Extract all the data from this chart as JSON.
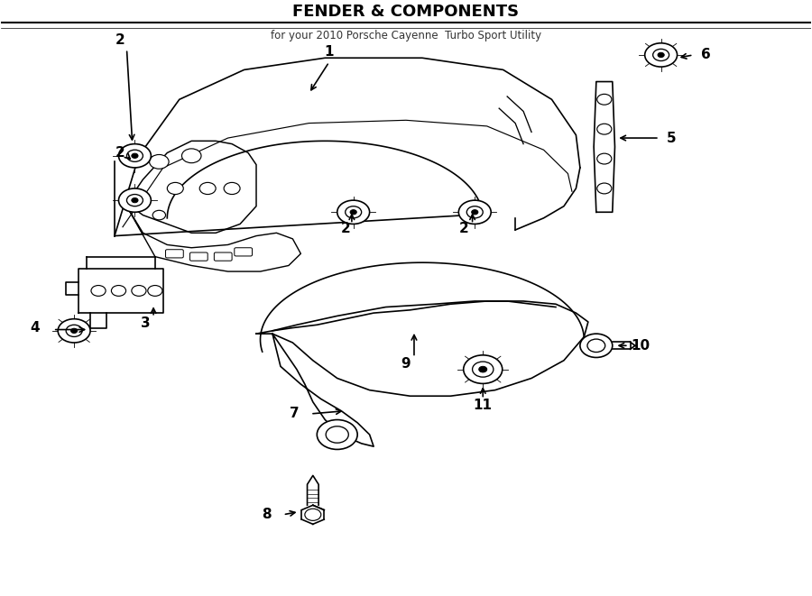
{
  "title": "FENDER & COMPONENTS",
  "subtitle": "for your 2010 Porsche Cayenne  Turbo Sport Utility",
  "background_color": "#ffffff",
  "line_color": "#000000",
  "figsize": [
    9.0,
    6.61
  ],
  "dpi": 100,
  "lw": 1.2
}
